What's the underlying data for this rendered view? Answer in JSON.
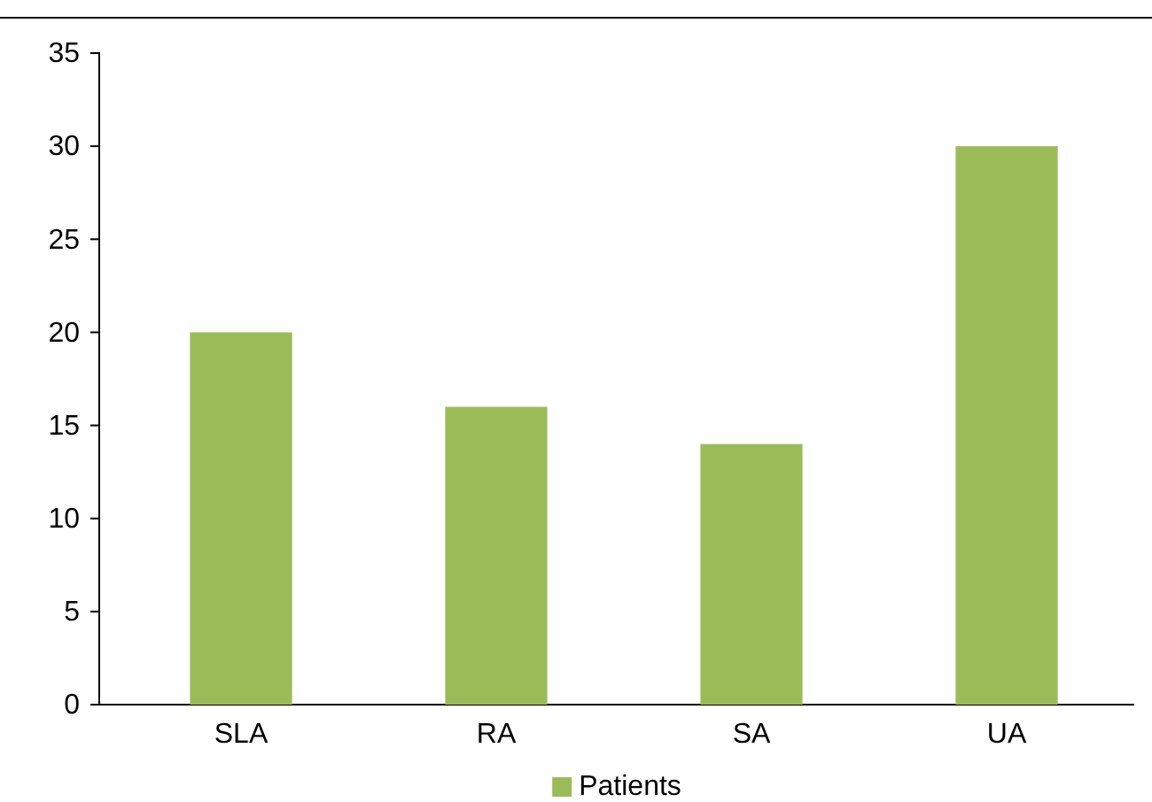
{
  "chart_data": {
    "type": "bar",
    "categories": [
      "SLA",
      "RA",
      "SA",
      "UA"
    ],
    "series": [
      {
        "name": "Patients",
        "color": "#9bbb59",
        "values": [
          20,
          16,
          14,
          30
        ]
      }
    ],
    "ylim": [
      0,
      35
    ],
    "yticks": [
      0,
      5,
      10,
      15,
      20,
      25,
      30,
      35
    ],
    "grid": false,
    "legend": "bottom"
  }
}
